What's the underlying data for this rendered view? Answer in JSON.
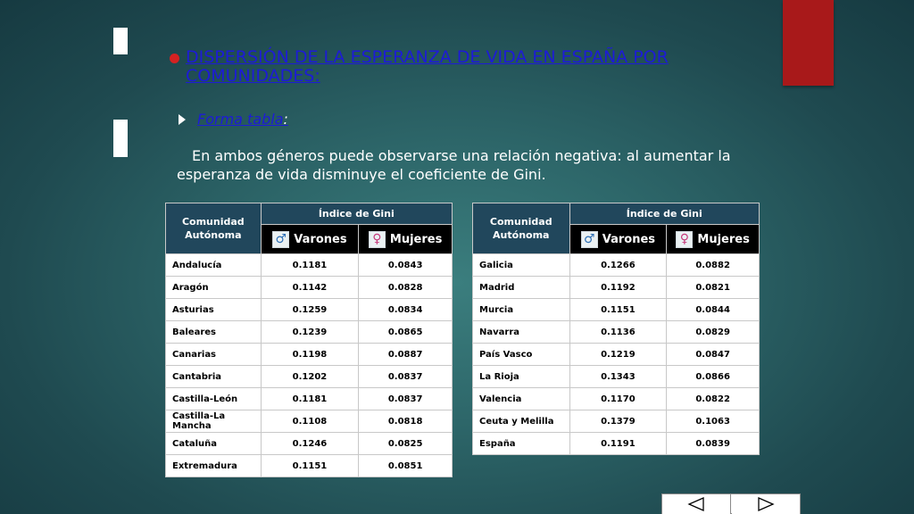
{
  "slide": {
    "title": "DISPERSIÓN DE LA ESPERANZA DE VIDA EN ESPAÑA POR COMUNIDADES:",
    "subtitle": "Forma tabla",
    "subtitle_suffix": ":",
    "paragraph": "En ambos géneros puede observarse una relación negativa: al aumentar la esperanza de vida disminuye el coeficiente de Gini.",
    "colors": {
      "title": "#1d1bd6",
      "bullet": "#d42222",
      "header_bg": "#21475c",
      "subheader_bg": "#000000",
      "accent_tab": "#a8191a"
    }
  },
  "table_headers": {
    "comunidad": "Comunidad Autónoma",
    "indice": "Índice de Gini",
    "varones": "Varones",
    "mujeres": "Mujeres",
    "varones_icon": "male-symbol-icon",
    "mujeres_icon": "female-symbol-icon"
  },
  "table_left": [
    {
      "name": "Andalucía",
      "varones": "0.1181",
      "mujeres": "0.0843"
    },
    {
      "name": "Aragón",
      "varones": "0.1142",
      "mujeres": "0.0828"
    },
    {
      "name": "Asturias",
      "varones": "0.1259",
      "mujeres": "0.0834"
    },
    {
      "name": "Baleares",
      "varones": "0.1239",
      "mujeres": "0.0865"
    },
    {
      "name": "Canarias",
      "varones": "0.1198",
      "mujeres": "0.0887"
    },
    {
      "name": "Cantabria",
      "varones": "0.1202",
      "mujeres": "0.0837"
    },
    {
      "name": "Castilla-León",
      "varones": "0.1181",
      "mujeres": "0.0837"
    },
    {
      "name": "Castilla-La Mancha",
      "varones": "0.1108",
      "mujeres": "0.0818"
    },
    {
      "name": "Cataluña",
      "varones": "0.1246",
      "mujeres": "0.0825"
    },
    {
      "name": "Extremadura",
      "varones": "0.1151",
      "mujeres": "0.0851"
    }
  ],
  "table_right": [
    {
      "name": "Galicia",
      "varones": "0.1266",
      "mujeres": "0.0882"
    },
    {
      "name": "Madrid",
      "varones": "0.1192",
      "mujeres": "0.0821"
    },
    {
      "name": "Murcia",
      "varones": "0.1151",
      "mujeres": "0.0844"
    },
    {
      "name": "Navarra",
      "varones": "0.1136",
      "mujeres": "0.0829"
    },
    {
      "name": "País Vasco",
      "varones": "0.1219",
      "mujeres": "0.0847"
    },
    {
      "name": "La Rioja",
      "varones": "0.1343",
      "mujeres": "0.0866"
    },
    {
      "name": "Valencia",
      "varones": "0.1170",
      "mujeres": "0.0822"
    },
    {
      "name": "Ceuta y Melilla",
      "varones": "0.1379",
      "mujeres": "0.1063"
    },
    {
      "name": "España",
      "varones": "0.1191",
      "mujeres": "0.0839"
    }
  ],
  "navigation": {
    "prev_icon": "triangle-left-icon",
    "next_icon": "triangle-right-icon"
  }
}
